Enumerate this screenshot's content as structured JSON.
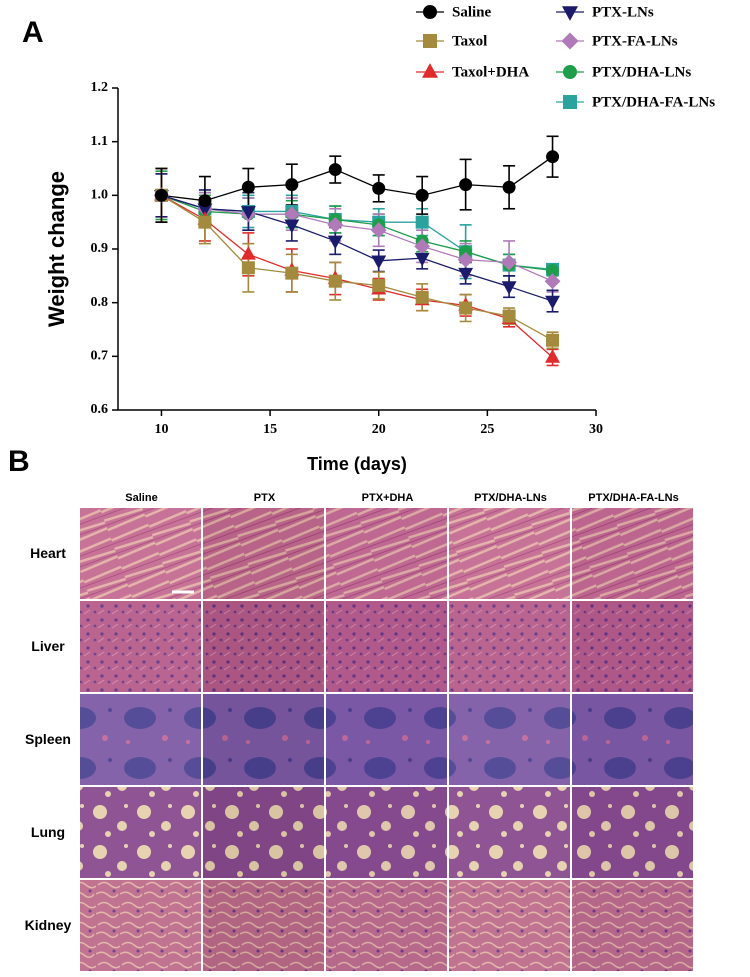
{
  "panels": {
    "a": "A",
    "b": "B"
  },
  "chart_data": {
    "type": "line",
    "x_label": "Time (days)",
    "y_label": "Weight change",
    "x": [
      10,
      12,
      14,
      16,
      18,
      20,
      22,
      24,
      26,
      28
    ],
    "xlim": [
      8,
      30
    ],
    "xticks": [
      10,
      15,
      20,
      25,
      30
    ],
    "ylim": [
      0.6,
      1.2
    ],
    "yticks": [
      0.6,
      0.7,
      0.8,
      0.9,
      {
        "value": 1,
        "label": "1.0"
      },
      1.1,
      1.2
    ],
    "grid": false,
    "series": [
      {
        "name": "Saline",
        "color": "#000000",
        "marker": "circle",
        "values": [
          1.0,
          0.99,
          1.015,
          1.02,
          1.048,
          1.013,
          1.0,
          1.02,
          1.015,
          1.072
        ],
        "errors": [
          0.05,
          0.045,
          0.035,
          0.038,
          0.025,
          0.025,
          0.035,
          0.047,
          0.04,
          0.038
        ]
      },
      {
        "name": "Taxol",
        "color": "#a38a3c",
        "marker": "square",
        "values": [
          1.0,
          0.95,
          0.865,
          0.855,
          0.84,
          0.832,
          0.81,
          0.79,
          0.775,
          0.73
        ],
        "errors": [
          0.05,
          0.04,
          0.045,
          0.035,
          0.035,
          0.025,
          0.025,
          0.025,
          0.015,
          0.015
        ]
      },
      {
        "name": "Taxol+DHA",
        "color": "#e02b2b",
        "marker": "triangle",
        "values": [
          1.0,
          0.955,
          0.89,
          0.86,
          0.845,
          0.825,
          0.805,
          0.795,
          0.77,
          0.698
        ],
        "errors": [
          0.05,
          0.04,
          0.04,
          0.04,
          0.03,
          0.02,
          0.02,
          0.02,
          0.015,
          0.015
        ]
      },
      {
        "name": "PTX-LNs",
        "color": "#1b1b6b",
        "marker": "triangle-down",
        "values": [
          1.0,
          0.975,
          0.97,
          0.945,
          0.915,
          0.878,
          0.883,
          0.855,
          0.83,
          0.803
        ],
        "errors": [
          0.04,
          0.035,
          0.035,
          0.03,
          0.025,
          0.02,
          0.02,
          0.02,
          0.02,
          0.02
        ]
      },
      {
        "name": "PTX-FA-LNs",
        "color": "#b07ab8",
        "marker": "diamond",
        "values": [
          1.0,
          0.975,
          0.965,
          0.965,
          0.945,
          0.935,
          0.905,
          0.88,
          0.875,
          0.84
        ],
        "errors": [
          0.04,
          0.03,
          0.03,
          0.03,
          0.03,
          0.03,
          0.03,
          0.03,
          0.04,
          0.02
        ]
      },
      {
        "name": "PTX/DHA-LNs",
        "color": "#1e9e4a",
        "marker": "circle",
        "values": [
          1.0,
          0.97,
          0.965,
          0.965,
          0.955,
          0.945,
          0.915,
          0.895,
          0.87,
          0.86
        ],
        "errors": [
          0.045,
          0.03,
          0.03,
          0.025,
          0.025,
          0.02,
          0.02,
          0.02,
          0.02,
          0.01
        ]
      },
      {
        "name": "PTX/DHA-FA-LNs",
        "color": "#2aa39f",
        "marker": "square",
        "values": [
          1.0,
          0.975,
          0.97,
          0.97,
          0.955,
          0.95,
          0.95,
          0.895,
          0.87,
          0.862
        ],
        "errors": [
          0.05,
          0.03,
          0.03,
          0.03,
          0.025,
          0.025,
          0.025,
          0.05,
          0.02,
          0.01
        ]
      }
    ]
  },
  "histology": {
    "columns": [
      "Saline",
      "PTX",
      "PTX+DHA",
      "PTX/DHA-LNs",
      "PTX/DHA-FA-LNs"
    ],
    "rows": [
      "Heart",
      "Liver",
      "Spleen",
      "Lung",
      "Kidney"
    ]
  }
}
